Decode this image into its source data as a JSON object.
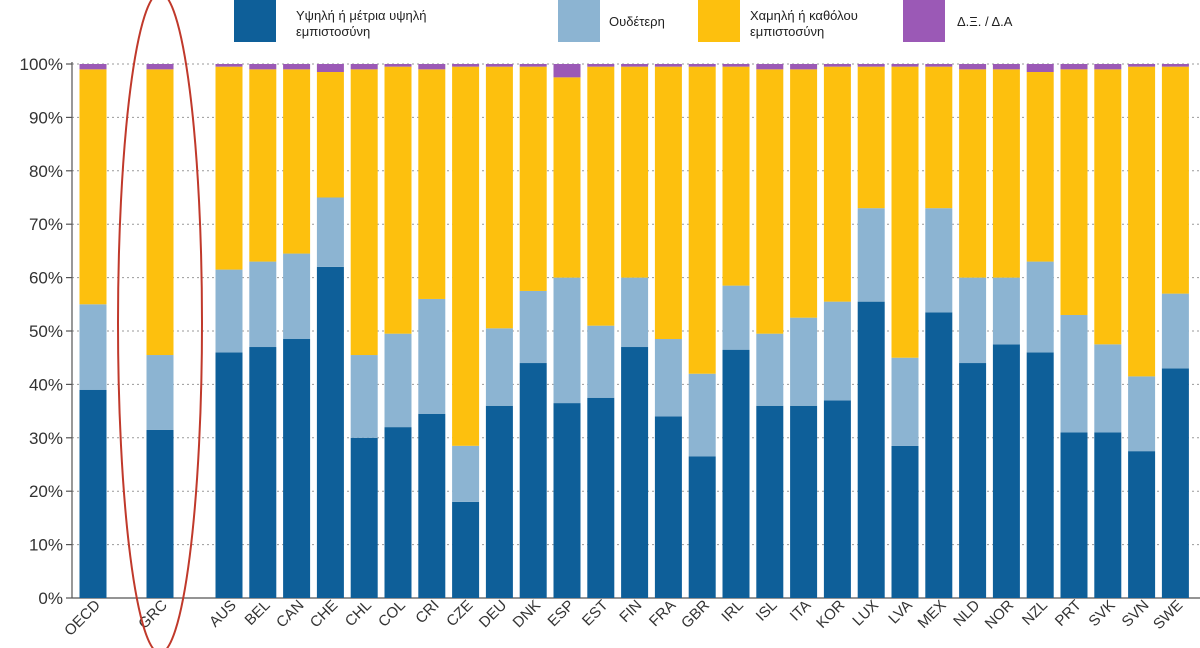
{
  "chart_data": {
    "type": "bar",
    "stacked": true,
    "title": "",
    "xlabel": "",
    "ylabel": "",
    "ylim": [
      0,
      100
    ],
    "yticks": [
      "0%",
      "10%",
      "20%",
      "30%",
      "40%",
      "50%",
      "60%",
      "70%",
      "80%",
      "90%",
      "100%"
    ],
    "grid": "horizontal dotted",
    "legend_position": "top",
    "highlight": {
      "category": "GRC",
      "shape": "ellipse",
      "color": "#c0392b"
    },
    "categories": [
      "OECD",
      "GRC",
      "AUS",
      "BEL",
      "CAN",
      "CHE",
      "CHL",
      "COL",
      "CRI",
      "CZE",
      "DEU",
      "DNK",
      "ESP",
      "EST",
      "FIN",
      "FRA",
      "GBR",
      "IRL",
      "ISL",
      "ITA",
      "KOR",
      "LUX",
      "LVA",
      "MEX",
      "NLD",
      "NOR",
      "NZL",
      "PRT",
      "SVK",
      "SVN",
      "SWE"
    ],
    "series": [
      {
        "name_lines": [
          "Υψηλή ή μέτρια υψηλή",
          "εμπιστοσύνη"
        ],
        "color": "#0e5f99",
        "values": [
          39,
          31.5,
          46,
          47,
          48.5,
          62,
          30,
          32,
          34.5,
          18,
          36,
          44,
          36.5,
          37.5,
          47,
          34,
          26.5,
          46.5,
          36,
          36,
          37,
          55.5,
          28.5,
          53.5,
          44,
          47.5,
          46,
          31,
          31,
          27.5,
          43
        ]
      },
      {
        "name_lines": [
          "Ουδέτερη"
        ],
        "color": "#8cb4d2",
        "values": [
          16,
          14,
          15.5,
          16,
          16,
          13,
          15.5,
          17.5,
          21.5,
          10.5,
          14.5,
          13.5,
          23.5,
          13.5,
          13,
          14.5,
          15.5,
          12,
          13.5,
          16.5,
          18.5,
          17.5,
          16.5,
          19.5,
          16,
          12.5,
          17,
          22,
          16.5,
          14,
          14
        ]
      },
      {
        "name_lines": [
          "Χαμηλή ή καθόλου",
          "εμπιστοσύνη"
        ],
        "color": "#fdc00e",
        "values": [
          44,
          53.5,
          38,
          36,
          34.5,
          23.5,
          53.5,
          50,
          43,
          71,
          49,
          42,
          37.5,
          48.5,
          39.5,
          51,
          57.5,
          41,
          49.5,
          46.5,
          44,
          26.5,
          54.5,
          26.5,
          39,
          39,
          35.5,
          46,
          51.5,
          58,
          42.5
        ]
      },
      {
        "name_lines": [
          "Δ.Ξ. / Δ.Α"
        ],
        "color": "#9b59b6",
        "values": [
          1,
          1,
          0.5,
          1,
          1,
          1.5,
          1,
          0.5,
          1,
          0.5,
          0.5,
          0.5,
          2.5,
          0.5,
          0.5,
          0.5,
          0.5,
          0.5,
          1,
          1,
          0.5,
          0.5,
          0.5,
          0.5,
          1,
          1,
          1.5,
          1,
          1,
          0.5,
          0.5
        ]
      }
    ]
  }
}
